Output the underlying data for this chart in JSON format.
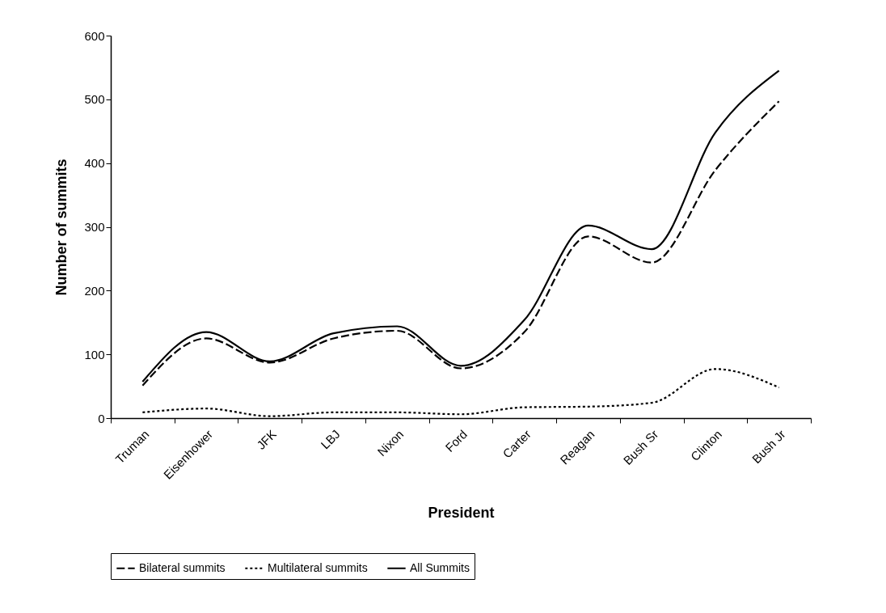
{
  "chart_data": {
    "type": "line",
    "xlabel": "President",
    "ylabel": "Number of summits",
    "categories": [
      "Truman",
      "Eisenhower",
      "JFK",
      "LBJ",
      "Nixon",
      "Ford",
      "Carter",
      "Reagan",
      "Bush Sr",
      "Clinton",
      "Bush Jr"
    ],
    "series": [
      {
        "name": "Bilateral summits",
        "color": "#000000",
        "line_style": "dashed",
        "values": [
          51,
          125,
          87,
          125,
          137,
          78,
          135,
          285,
          244,
          389,
          497
        ]
      },
      {
        "name": "Multilateral summits",
        "color": "#000000",
        "line_style": "dotted",
        "values": [
          9,
          15,
          3,
          9,
          9,
          6,
          17,
          18,
          24,
          77,
          48
        ]
      },
      {
        "name": "All Summits",
        "color": "#000000",
        "line_style": "solid",
        "values": [
          57,
          135,
          89,
          133,
          144,
          82,
          154,
          302,
          265,
          448,
          545
        ]
      }
    ],
    "ylim": [
      0,
      600
    ],
    "yticks": [
      0,
      100,
      200,
      300,
      400,
      500,
      600
    ],
    "grid": false,
    "legend": "bottom",
    "marker": "none"
  }
}
